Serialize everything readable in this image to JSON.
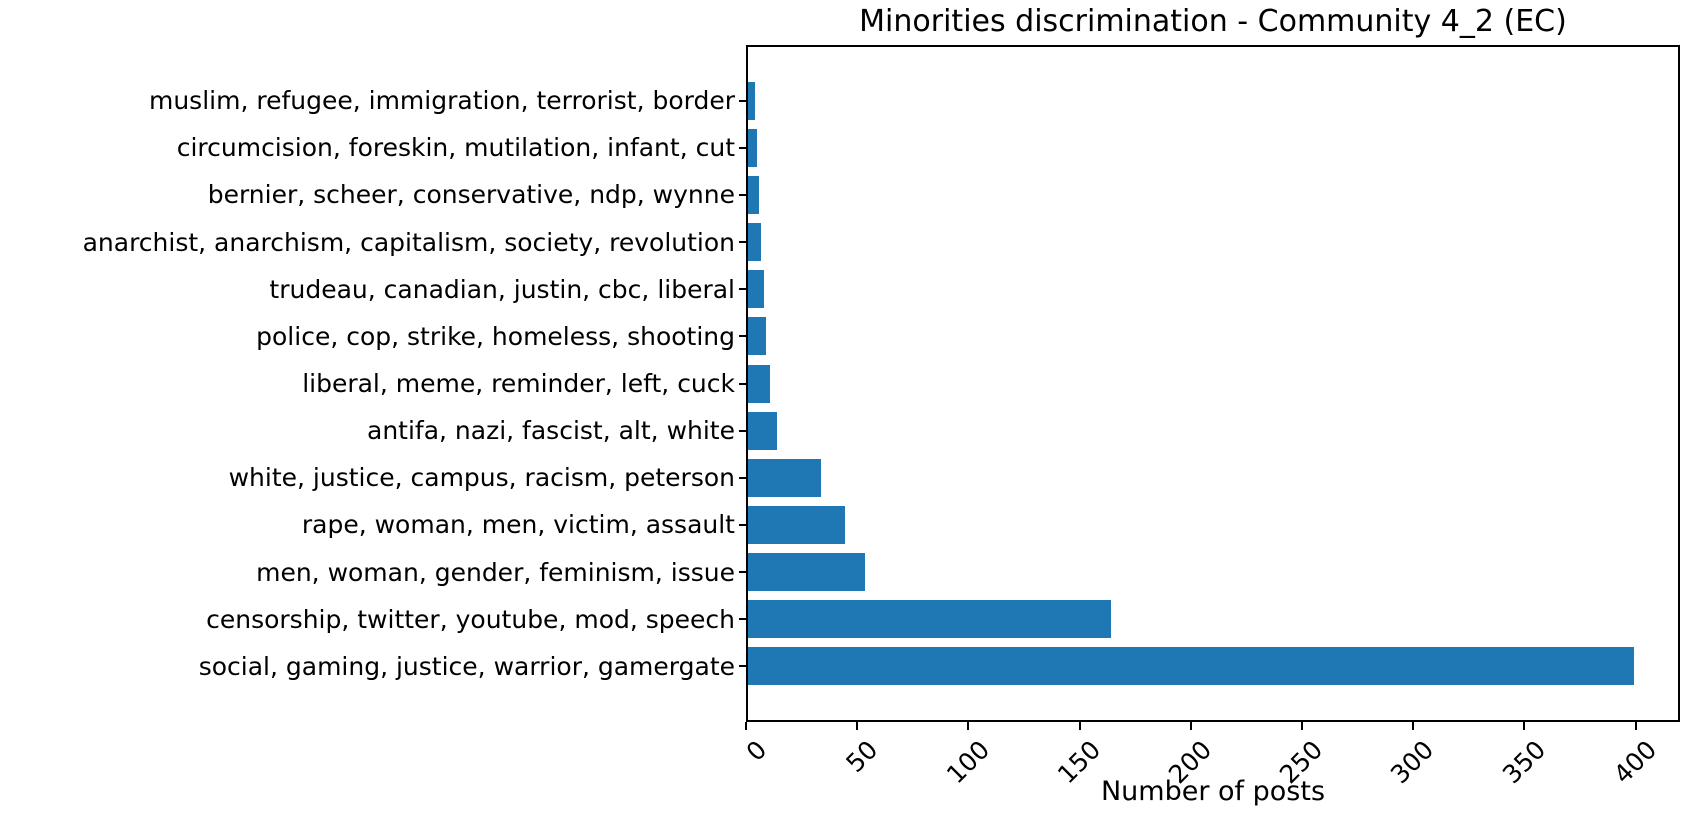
{
  "page": {
    "background_color": "#ffffff"
  },
  "chart_data": {
    "type": "bar",
    "orientation": "horizontal",
    "order": "top-to-bottom",
    "title": "Minorities discrimination - Community 4_2 (EC)",
    "xlabel": "Number of posts",
    "ylabel": "",
    "xlim": [
      0,
      420
    ],
    "xticks": [
      0,
      50,
      100,
      150,
      200,
      250,
      300,
      350,
      400
    ],
    "xtick_rotation_deg": 45,
    "grid": false,
    "legend": null,
    "bar_color": "#1f77b4",
    "axis_color": "#000000",
    "text_color": "#000000",
    "categories": [
      "muslim, refugee, immigration, terrorist, border",
      "circumcision, foreskin, mutilation, infant, cut",
      "bernier, scheer, conservative, ndp, wynne",
      "anarchist, anarchism, capitalism, society, revolution",
      "trudeau, canadian, justin, cbc, liberal",
      "police, cop, strike, homeless, shooting",
      "liberal, meme, reminder, left, cuck",
      "antifa, nazi, fascist, alt, white",
      "white, justice, campus, racism, peterson",
      "rape, woman, men, victim, assault",
      "men, woman, gender, feminism, issue",
      "censorship, twitter, youtube, mod, speech",
      "social, gaming, justice, warrior, gamergate"
    ],
    "values": [
      3,
      4,
      5,
      6,
      7,
      8,
      10,
      13,
      33,
      44,
      53,
      164,
      400
    ]
  }
}
